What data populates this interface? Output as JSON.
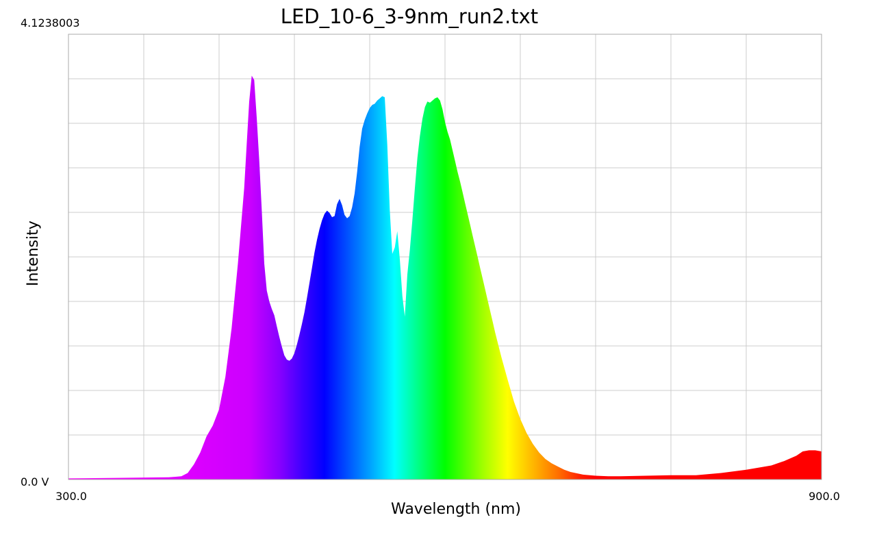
{
  "chart_data": {
    "type": "area",
    "title": "LED_10-6_3-9nm_run2.txt",
    "xlabel": "Wavelength (nm)",
    "ylabel": "Intensity",
    "x_tick_labels": [
      "300.0",
      "900.0"
    ],
    "y_tick_labels": [
      "0.0 V",
      "4.1238003"
    ],
    "xlim": [
      300,
      900
    ],
    "ylim": [
      0,
      4.1238003
    ],
    "grid": true,
    "fill": "spectral (wavelength-colored)",
    "x": [
      300,
      340,
      380,
      390,
      395,
      400,
      405,
      410,
      415,
      420,
      425,
      430,
      435,
      440,
      442,
      444,
      446,
      448,
      450,
      452,
      454,
      456,
      458,
      460,
      462,
      464,
      466,
      468,
      470,
      472,
      474,
      476,
      478,
      480,
      482,
      484,
      486,
      488,
      490,
      492,
      494,
      496,
      498,
      500,
      502,
      504,
      506,
      508,
      510,
      512,
      514,
      516,
      518,
      520,
      522,
      524,
      526,
      528,
      530,
      532,
      534,
      536,
      538,
      540,
      542,
      544,
      546,
      548,
      550,
      552,
      554,
      556,
      558,
      560,
      562,
      564,
      566,
      568,
      570,
      572,
      574,
      576,
      578,
      580,
      582,
      584,
      586,
      588,
      590,
      592,
      594,
      596,
      598,
      600,
      602,
      604,
      606,
      608,
      610,
      612,
      614,
      616,
      618,
      620,
      622,
      624,
      626,
      628,
      630,
      632,
      634,
      636,
      638,
      640,
      645,
      650,
      655,
      660,
      665,
      670,
      675,
      680,
      685,
      690,
      695,
      700,
      710,
      720,
      730,
      740,
      760,
      780,
      800,
      820,
      840,
      860,
      870,
      880,
      885,
      890,
      895,
      900
    ],
    "values": [
      0.01,
      0.015,
      0.02,
      0.03,
      0.06,
      0.14,
      0.25,
      0.4,
      0.5,
      0.65,
      0.95,
      1.4,
      2.0,
      2.7,
      3.1,
      3.5,
      3.74,
      3.7,
      3.35,
      2.95,
      2.5,
      2.0,
      1.75,
      1.65,
      1.58,
      1.52,
      1.42,
      1.32,
      1.23,
      1.15,
      1.11,
      1.1,
      1.12,
      1.17,
      1.25,
      1.34,
      1.44,
      1.55,
      1.68,
      1.82,
      1.96,
      2.1,
      2.22,
      2.32,
      2.4,
      2.46,
      2.49,
      2.47,
      2.43,
      2.44,
      2.55,
      2.6,
      2.54,
      2.45,
      2.42,
      2.44,
      2.52,
      2.65,
      2.85,
      3.08,
      3.25,
      3.33,
      3.39,
      3.44,
      3.47,
      3.48,
      3.51,
      3.53,
      3.55,
      3.54,
      3.1,
      2.5,
      2.09,
      2.15,
      2.3,
      2.04,
      1.7,
      1.51,
      1.9,
      2.13,
      2.4,
      2.7,
      2.98,
      3.18,
      3.34,
      3.45,
      3.5,
      3.49,
      3.51,
      3.53,
      3.54,
      3.51,
      3.43,
      3.31,
      3.22,
      3.15,
      3.05,
      2.95,
      2.85,
      2.76,
      2.66,
      2.56,
      2.46,
      2.36,
      2.26,
      2.16,
      2.06,
      1.96,
      1.86,
      1.76,
      1.66,
      1.56,
      1.46,
      1.36,
      1.13,
      0.92,
      0.72,
      0.56,
      0.43,
      0.33,
      0.25,
      0.19,
      0.15,
      0.12,
      0.09,
      0.07,
      0.045,
      0.035,
      0.03,
      0.03,
      0.035,
      0.04,
      0.04,
      0.06,
      0.09,
      0.13,
      0.17,
      0.22,
      0.26,
      0.27,
      0.27,
      0.26
    ]
  }
}
